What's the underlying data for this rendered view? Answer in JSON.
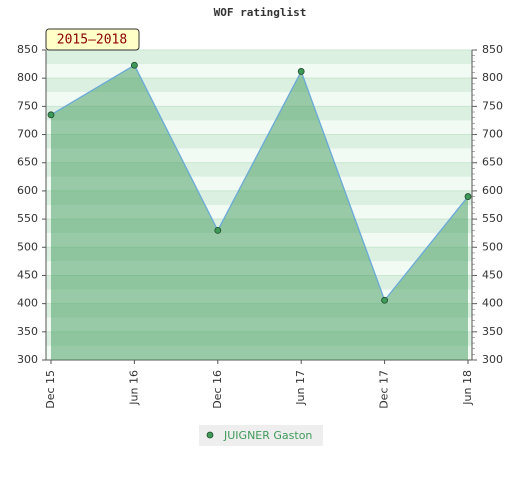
{
  "chart_data": {
    "type": "area",
    "title": "WOF ratinglist",
    "annotation": "2015–2018",
    "categories": [
      "Dec 15",
      "Jun 16",
      "Dec 16",
      "Jun 17",
      "Dec 17",
      "Jun 18"
    ],
    "series": [
      {
        "name": "JUIGNER Gaston",
        "color": "#3f9a5a",
        "line_color": "#6aaad8",
        "values": [
          735,
          823,
          530,
          812,
          406,
          590
        ]
      }
    ],
    "ylim": [
      300,
      850
    ],
    "yticks": [
      300,
      350,
      400,
      450,
      500,
      550,
      600,
      650,
      700,
      750,
      800,
      850
    ],
    "y2lim": [
      300,
      850
    ],
    "y2ticks": [
      300,
      350,
      400,
      450,
      500,
      550,
      600,
      650,
      700,
      750,
      800,
      850
    ],
    "grid": true,
    "legend": "bottom"
  }
}
